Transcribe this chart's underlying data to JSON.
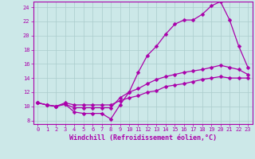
{
  "title": "",
  "xlabel": "Windchill (Refroidissement éolien,°C)",
  "ylabel": "",
  "xlim": [
    -0.5,
    23.5
  ],
  "ylim": [
    7.5,
    24.8
  ],
  "xticks": [
    0,
    1,
    2,
    3,
    4,
    5,
    6,
    7,
    8,
    9,
    10,
    11,
    12,
    13,
    14,
    15,
    16,
    17,
    18,
    19,
    20,
    21,
    22,
    23
  ],
  "yticks": [
    8,
    10,
    12,
    14,
    16,
    18,
    20,
    22,
    24
  ],
  "bg_color": "#cce8e8",
  "line_color": "#aa00aa",
  "grid_color": "#aacccc",
  "line1_x": [
    0,
    1,
    2,
    3,
    4,
    5,
    6,
    7,
    8,
    9,
    10,
    11,
    12,
    13,
    14,
    15,
    16,
    17,
    18,
    19,
    20,
    21,
    22,
    23
  ],
  "line1_y": [
    10.5,
    10.2,
    10.0,
    10.3,
    9.2,
    9.0,
    9.0,
    9.0,
    8.2,
    10.2,
    12.0,
    14.8,
    17.2,
    18.5,
    20.2,
    21.6,
    22.2,
    22.2,
    23.0,
    24.2,
    24.8,
    22.2,
    18.5,
    15.5
  ],
  "line2_x": [
    0,
    1,
    2,
    3,
    4,
    5,
    6,
    7,
    8,
    9,
    10,
    11,
    12,
    13,
    14,
    15,
    16,
    17,
    18,
    19,
    20,
    21,
    22,
    23
  ],
  "line2_y": [
    10.5,
    10.2,
    10.0,
    10.3,
    9.8,
    9.8,
    9.8,
    9.8,
    9.8,
    11.2,
    12.0,
    12.5,
    13.2,
    13.8,
    14.2,
    14.5,
    14.8,
    15.0,
    15.2,
    15.5,
    15.8,
    15.5,
    15.2,
    14.5
  ],
  "line3_x": [
    0,
    1,
    2,
    3,
    4,
    5,
    6,
    7,
    8,
    9,
    10,
    11,
    12,
    13,
    14,
    15,
    16,
    17,
    18,
    19,
    20,
    21,
    22,
    23
  ],
  "line3_y": [
    10.5,
    10.2,
    10.0,
    10.5,
    10.2,
    10.2,
    10.2,
    10.2,
    10.2,
    10.8,
    11.2,
    11.5,
    12.0,
    12.2,
    12.8,
    13.0,
    13.2,
    13.5,
    13.8,
    14.0,
    14.2,
    14.0,
    14.0,
    14.0
  ],
  "marker": "D",
  "markersize": 2.5,
  "linewidth": 0.9,
  "tick_fontsize": 5.0,
  "xlabel_fontsize": 6.0
}
